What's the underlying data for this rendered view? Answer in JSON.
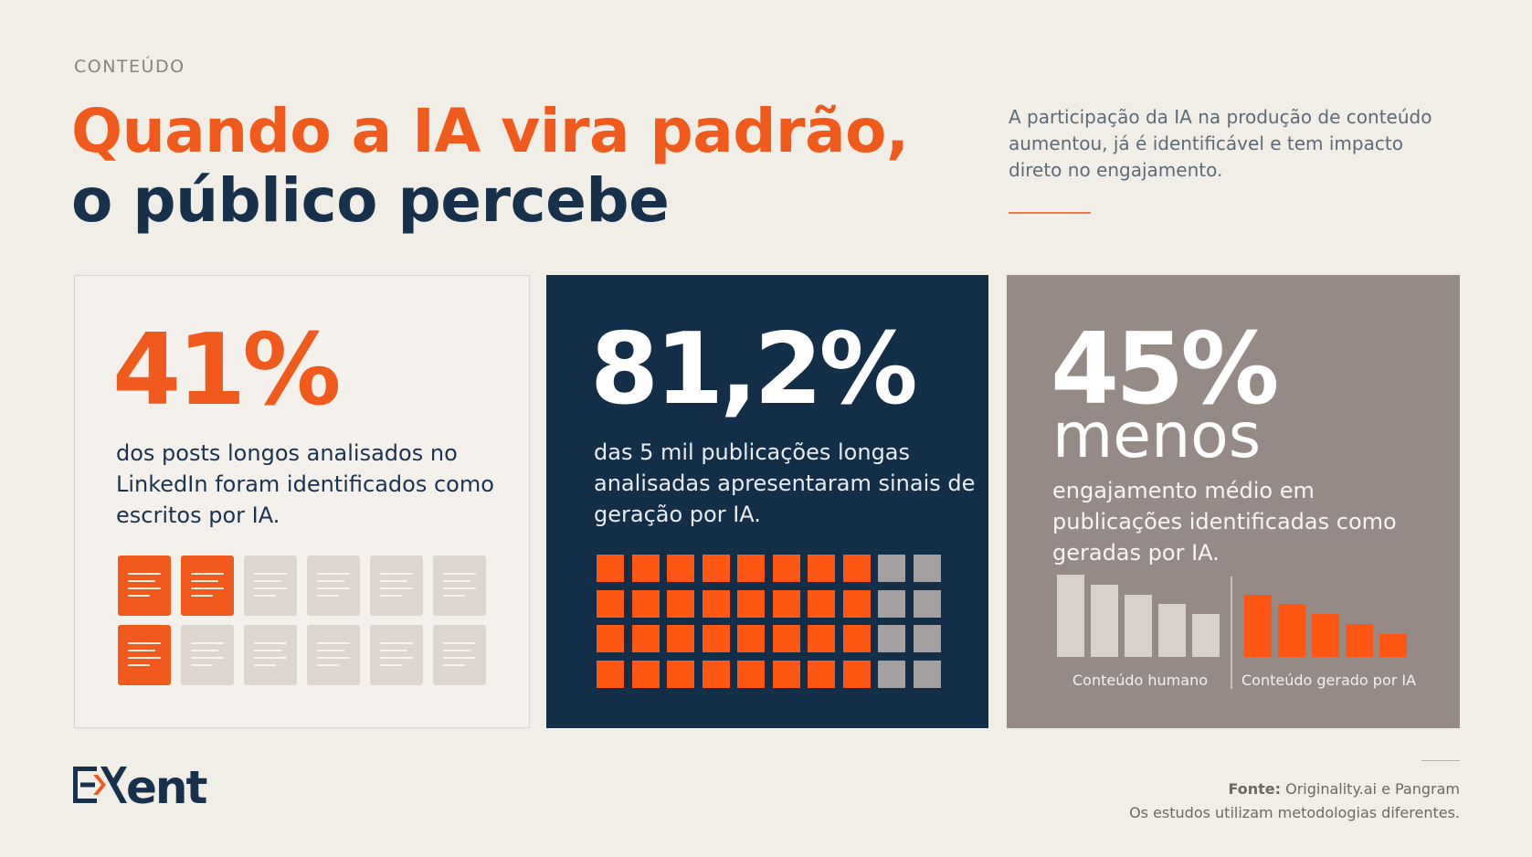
{
  "header": {
    "eyebrow": "CONTEÚDO",
    "title_line1": "Quando a IA vira padrão,",
    "title_line2": "o público percebe",
    "intro": "A participação da IA na produção de conteúdo aumentou, já é identificável e tem impacto direto no engajamento."
  },
  "cards": {
    "linkedin": {
      "stat": "41%",
      "description": "dos posts longos analisados no LinkedIn foram identificados como escritos por IA.",
      "doc_grid": {
        "total": 12,
        "highlighted": [
          0,
          1,
          6
        ],
        "highlight_color": "#f15a1d"
      }
    },
    "publications": {
      "stat": "81,2%",
      "description": "das 5 mil publicações longas analisadas apresentaram sinais de geração por IA.",
      "square_grid": {
        "columns": 10,
        "rows": 4,
        "highlighted_columns": 8,
        "highlight_color": "#ff5614"
      }
    },
    "engagement": {
      "stat": "45%",
      "stat_word": "menos",
      "description": "engajamento médio em publicações identificadas como geradas por IA.",
      "bars_human": [
        1.0,
        0.88,
        0.76,
        0.64,
        0.52
      ],
      "bars_ai": [
        0.76,
        0.64,
        0.52,
        0.4,
        0.28
      ],
      "label_human": "Conteúdo humano",
      "label_ai": "Conteúdo gerado por IA"
    }
  },
  "footer": {
    "source_label": "Fonte:",
    "source_text": "Originality.ai e Pangram",
    "note": "Os estudos utilizam metodologias diferentes."
  },
  "colors": {
    "accent": "#f15a1d",
    "navy": "#122e48",
    "taupe": "#958a86",
    "background": "#f1ede7"
  }
}
